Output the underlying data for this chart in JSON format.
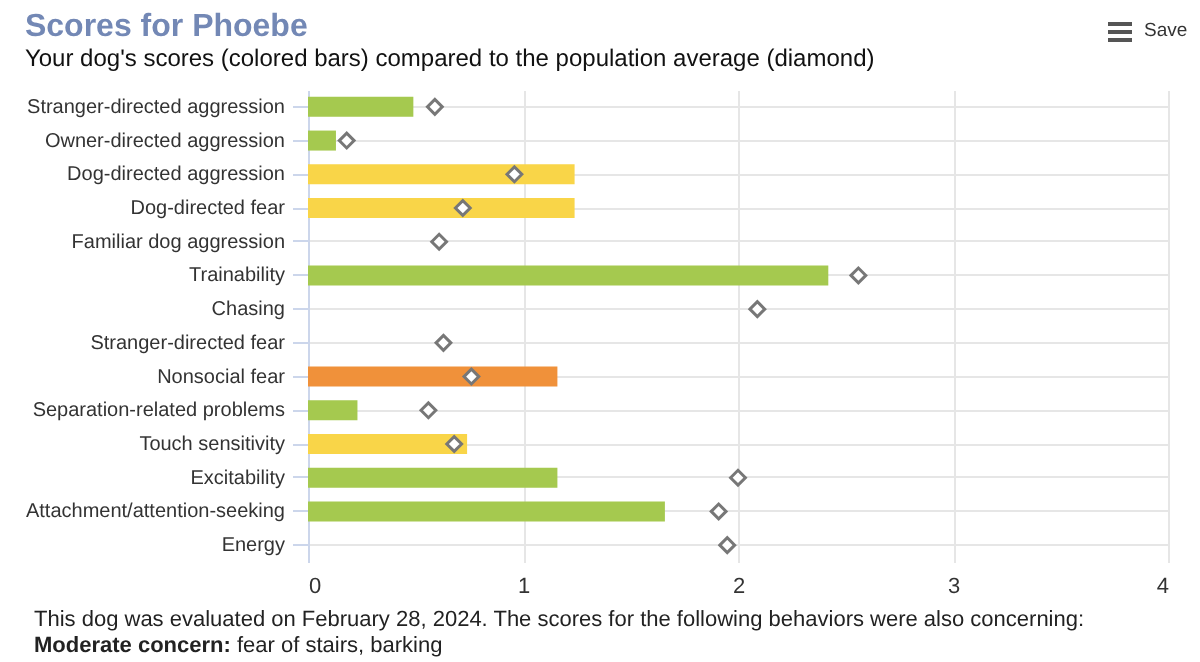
{
  "chart_data": {
    "type": "bar",
    "orientation": "horizontal",
    "title": "Scores for Phoebe",
    "subtitle": "Your dog's scores (colored bars) compared to the population average (diamond)",
    "categories": [
      "Stranger-directed aggression",
      "Owner-directed aggression",
      "Dog-directed aggression",
      "Dog-directed fear",
      "Familiar dog aggression",
      "Trainability",
      "Chasing",
      "Stranger-directed fear",
      "Nonsocial fear",
      "Separation-related problems",
      "Touch sensitivity",
      "Excitability",
      "Attachment/attention-seeking",
      "Energy"
    ],
    "series": [
      {
        "type": "bar",
        "values": [
          0.49,
          0.13,
          1.24,
          1.24,
          null,
          2.42,
          null,
          null,
          1.16,
          0.23,
          0.74,
          1.16,
          1.66,
          null
        ],
        "colors": [
          "#a5c94f",
          "#a5c94f",
          "#f9d548",
          "#f9d548",
          null,
          "#a5c94f",
          null,
          null,
          "#f0913a",
          "#a5c94f",
          "#f9d548",
          "#a5c94f",
          "#a5c94f",
          null
        ]
      },
      {
        "type": "scatter",
        "marker": "diamond",
        "color": "#777777",
        "values": [
          0.59,
          0.18,
          0.96,
          0.72,
          0.61,
          2.56,
          2.09,
          0.63,
          0.76,
          0.56,
          0.68,
          2.0,
          1.91,
          1.95
        ]
      }
    ],
    "xlim": [
      0,
      4
    ],
    "xticks": [
      0,
      1,
      2,
      3,
      4
    ],
    "grid": true,
    "annotations": [
      "This dog was evaluated on February 28, 2024. The scores for the following behaviors were also concerning:",
      "Moderate concern:",
      "fear of stairs, barking",
      "Save"
    ]
  }
}
